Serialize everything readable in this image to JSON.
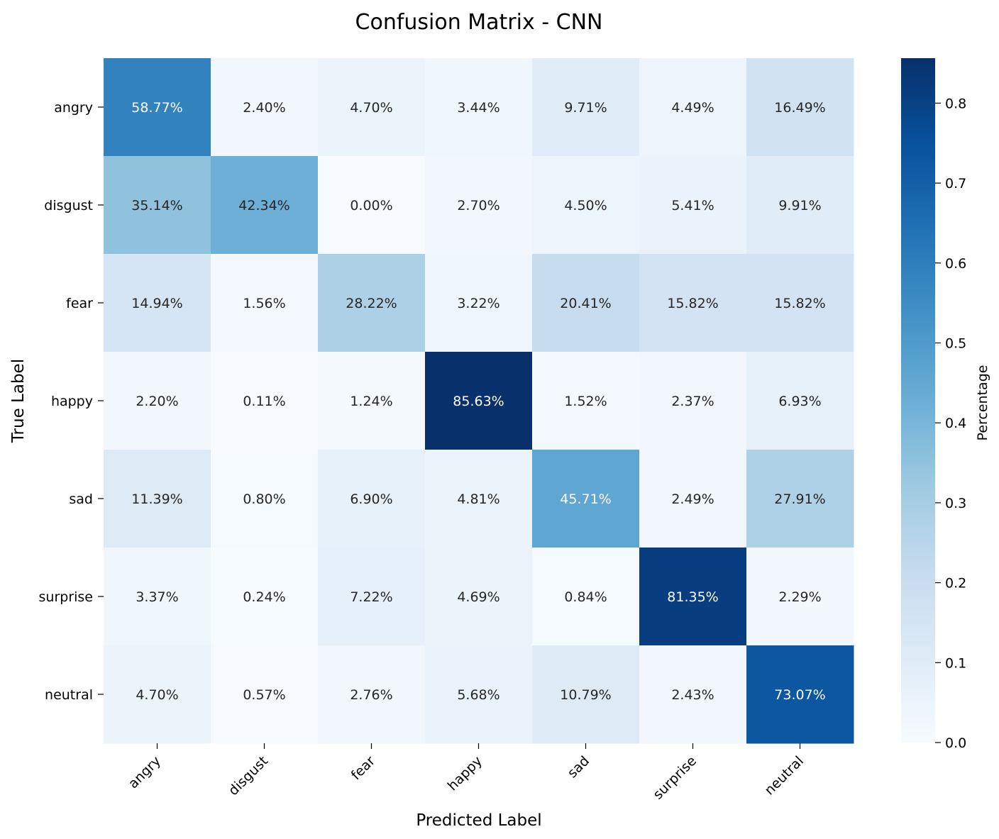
{
  "chart_data": {
    "type": "heatmap",
    "title": "Confusion Matrix - CNN",
    "xlabel": "Predicted Label",
    "ylabel": "True Label",
    "x_categories": [
      "angry",
      "disgust",
      "fear",
      "happy",
      "sad",
      "surprise",
      "neutral"
    ],
    "y_categories": [
      "angry",
      "disgust",
      "fear",
      "happy",
      "sad",
      "surprise",
      "neutral"
    ],
    "cell_labels": [
      [
        "58.77%",
        "2.40%",
        "4.70%",
        "3.44%",
        "9.71%",
        "4.49%",
        "16.49%"
      ],
      [
        "35.14%",
        "42.34%",
        "0.00%",
        "2.70%",
        "4.50%",
        "5.41%",
        "9.91%"
      ],
      [
        "14.94%",
        "1.56%",
        "28.22%",
        "3.22%",
        "20.41%",
        "15.82%",
        "15.82%"
      ],
      [
        "2.20%",
        "0.11%",
        "1.24%",
        "85.63%",
        "1.52%",
        "2.37%",
        "6.93%"
      ],
      [
        "11.39%",
        "0.80%",
        "6.90%",
        "4.81%",
        "45.71%",
        "2.49%",
        "27.91%"
      ],
      [
        "3.37%",
        "0.24%",
        "7.22%",
        "4.69%",
        "0.84%",
        "81.35%",
        "2.29%"
      ],
      [
        "4.70%",
        "0.57%",
        "2.76%",
        "5.68%",
        "10.79%",
        "2.43%",
        "73.07%"
      ]
    ],
    "values": [
      [
        0.5877,
        0.024,
        0.047,
        0.0344,
        0.0971,
        0.0449,
        0.1649
      ],
      [
        0.3514,
        0.4234,
        0.0,
        0.027,
        0.045,
        0.0541,
        0.0991
      ],
      [
        0.1494,
        0.0156,
        0.2822,
        0.0322,
        0.2041,
        0.1582,
        0.1582
      ],
      [
        0.022,
        0.0011,
        0.0124,
        0.8563,
        0.0152,
        0.0237,
        0.0693
      ],
      [
        0.1139,
        0.008,
        0.069,
        0.0481,
        0.4571,
        0.0249,
        0.2791
      ],
      [
        0.0337,
        0.0024,
        0.0722,
        0.0469,
        0.0084,
        0.8135,
        0.0229
      ],
      [
        0.047,
        0.0057,
        0.0276,
        0.0568,
        0.1079,
        0.0243,
        0.7307
      ]
    ],
    "colorbar": {
      "label": "Percentage",
      "range": [
        0.0,
        0.8563
      ],
      "ticks": [
        "0.0",
        "0.1",
        "0.2",
        "0.3",
        "0.4",
        "0.5",
        "0.6",
        "0.7",
        "0.8"
      ],
      "colormap": "Blues"
    },
    "colors": {
      "low": "#f7fbff",
      "high": "#08306b",
      "text_dark": "#262626",
      "text_light": "#ffffff"
    }
  }
}
